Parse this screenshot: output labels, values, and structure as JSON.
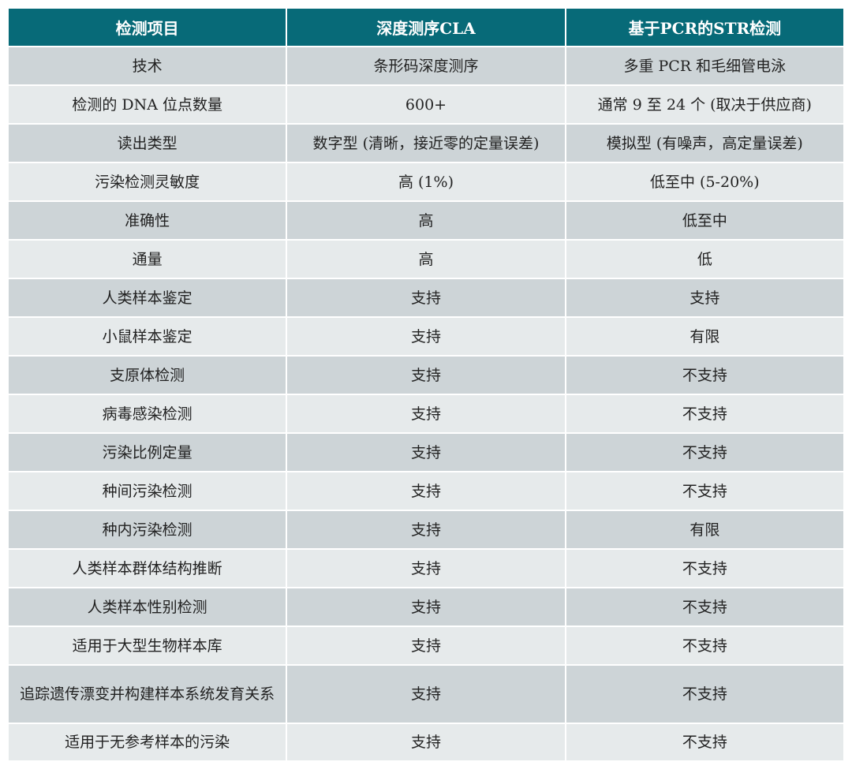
{
  "colors": {
    "header": "#076a78",
    "row_dark": "#cdd4d7",
    "row_light": "#e6eaeb"
  },
  "headers": [
    "检测项目",
    "深度测序CLA",
    "基于PCR的STR检测"
  ],
  "rows": [
    [
      "技术",
      "条形码深度测序",
      "多重 PCR 和毛细管电泳"
    ],
    [
      "检测的 DNA 位点数量",
      "600+",
      "通常 9 至 24 个 (取决于供应商)"
    ],
    [
      "读出类型",
      "数字型 (清晰，接近零的定量误差)",
      "模拟型 (有噪声，高定量误差)"
    ],
    [
      "污染检测灵敏度",
      "高 (1%)",
      "低至中 (5-20%)"
    ],
    [
      "准确性",
      "高",
      "低至中"
    ],
    [
      "通量",
      "高",
      "低"
    ],
    [
      "人类样本鉴定",
      "支持",
      "支持"
    ],
    [
      "小鼠样本鉴定",
      "支持",
      "有限"
    ],
    [
      "支原体检测",
      "支持",
      "不支持"
    ],
    [
      "病毒感染检测",
      "支持",
      "不支持"
    ],
    [
      "污染比例定量",
      "支持",
      "不支持"
    ],
    [
      "种间污染检测",
      "支持",
      "不支持"
    ],
    [
      "种内污染检测",
      "支持",
      "有限"
    ],
    [
      "人类样本群体结构推断",
      "支持",
      "不支持"
    ],
    [
      "人类样本性别检测",
      "支持",
      "不支持"
    ],
    [
      "适用于大型生物样本库",
      "支持",
      "不支持"
    ],
    [
      "追踪遗传漂变并构建样本系统发育关系",
      "支持",
      "不支持"
    ],
    [
      "适用于无参考样本的污染",
      "支持",
      "不支持"
    ]
  ]
}
